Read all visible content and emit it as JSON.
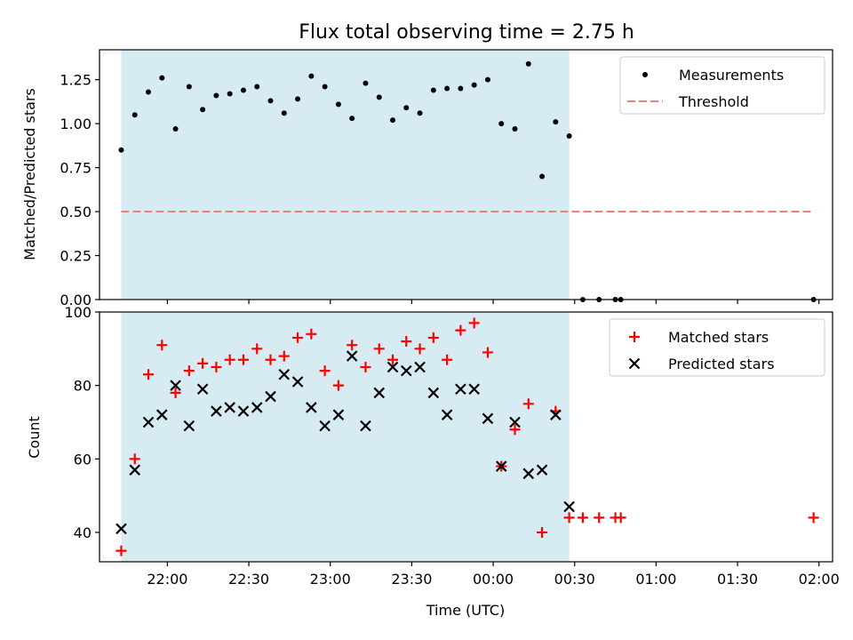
{
  "chart_data": [
    {
      "type": "scatter",
      "title": "Flux total observing time = 2.75 h",
      "xlabel": "",
      "ylabel": "Matched/Predicted stars",
      "ylim": [
        0,
        1.42
      ],
      "yticks": [
        0,
        0.25,
        0.5,
        0.75,
        1.0,
        1.25
      ],
      "ytick_labels": [
        "0.00",
        "0.25",
        "0.50",
        "0.75",
        "1.00",
        "1.25"
      ],
      "xlim": [
        "21:35",
        "02:05"
      ],
      "xticks": [
        "22:00",
        "22:30",
        "23:00",
        "23:30",
        "00:00",
        "00:30",
        "01:00",
        "01:30",
        "02:00"
      ],
      "shaded_interval": [
        "21:43",
        "00:28"
      ],
      "shade_color": "#add8e6",
      "legend_position": "top-right",
      "series": [
        {
          "name": "Measurements",
          "marker": "dot",
          "color": "#000000",
          "x": [
            "21:43",
            "21:48",
            "21:53",
            "21:58",
            "22:03",
            "22:08",
            "22:13",
            "22:18",
            "22:23",
            "22:28",
            "22:33",
            "22:38",
            "22:43",
            "22:48",
            "22:53",
            "22:58",
            "23:03",
            "23:08",
            "23:13",
            "23:18",
            "23:23",
            "23:28",
            "23:33",
            "23:38",
            "23:43",
            "23:48",
            "23:53",
            "23:58",
            "00:03",
            "00:08",
            "00:13",
            "00:18",
            "00:23",
            "00:28",
            "00:33",
            "00:39",
            "00:45",
            "00:47",
            "01:58"
          ],
          "y": [
            0.85,
            1.05,
            1.18,
            1.26,
            0.97,
            1.21,
            1.08,
            1.16,
            1.17,
            1.19,
            1.21,
            1.13,
            1.06,
            1.14,
            1.27,
            1.21,
            1.11,
            1.03,
            1.23,
            1.15,
            1.02,
            1.09,
            1.06,
            1.19,
            1.2,
            1.2,
            1.22,
            1.25,
            1.0,
            0.97,
            1.34,
            0.7,
            1.01,
            0.93,
            0.0,
            0.0,
            0.0,
            0.0,
            0.0
          ]
        },
        {
          "name": "Threshold",
          "marker": "dashed-line",
          "color": "#f08080",
          "x": [
            "21:43",
            "01:58"
          ],
          "y": [
            0.5,
            0.5
          ]
        }
      ]
    },
    {
      "type": "scatter",
      "title": "",
      "xlabel": "Time (UTC)",
      "ylabel": "Count",
      "ylim": [
        32,
        100
      ],
      "yticks": [
        40,
        60,
        80,
        100
      ],
      "ytick_labels": [
        "40",
        "60",
        "80",
        "100"
      ],
      "xlim": [
        "21:35",
        "02:05"
      ],
      "xticks": [
        "22:00",
        "22:30",
        "23:00",
        "23:30",
        "00:00",
        "00:30",
        "01:00",
        "01:30",
        "02:00"
      ],
      "shaded_interval": [
        "21:43",
        "00:28"
      ],
      "shade_color": "#add8e6",
      "legend_position": "top-right",
      "series": [
        {
          "name": "Matched stars",
          "marker": "plus",
          "color": "#ff0000",
          "x": [
            "21:43",
            "21:48",
            "21:53",
            "21:58",
            "22:03",
            "22:08",
            "22:13",
            "22:18",
            "22:23",
            "22:28",
            "22:33",
            "22:38",
            "22:43",
            "22:48",
            "22:53",
            "22:58",
            "23:03",
            "23:08",
            "23:13",
            "23:18",
            "23:23",
            "23:28",
            "23:33",
            "23:38",
            "23:43",
            "23:48",
            "23:53",
            "23:58",
            "00:03",
            "00:08",
            "00:13",
            "00:18",
            "00:23",
            "00:28",
            "00:33",
            "00:39",
            "00:45",
            "00:47",
            "01:58"
          ],
          "y": [
            35,
            60,
            83,
            91,
            78,
            84,
            86,
            85,
            87,
            87,
            90,
            87,
            88,
            93,
            94,
            84,
            80,
            91,
            85,
            90,
            87,
            92,
            90,
            93,
            87,
            95,
            97,
            89,
            58,
            68,
            75,
            40,
            73,
            44,
            44,
            44,
            44,
            44,
            44
          ]
        },
        {
          "name": "Predicted stars",
          "marker": "x",
          "color": "#000000",
          "x": [
            "21:43",
            "21:48",
            "21:53",
            "21:58",
            "22:03",
            "22:08",
            "22:13",
            "22:18",
            "22:23",
            "22:28",
            "22:33",
            "22:38",
            "22:43",
            "22:48",
            "22:53",
            "22:58",
            "23:03",
            "23:08",
            "23:13",
            "23:18",
            "23:23",
            "23:28",
            "23:33",
            "23:38",
            "23:43",
            "23:48",
            "23:53",
            "23:58",
            "00:03",
            "00:08",
            "00:13",
            "00:18",
            "00:23",
            "00:28"
          ],
          "y": [
            41,
            57,
            70,
            72,
            80,
            69,
            79,
            73,
            74,
            73,
            74,
            77,
            83,
            81,
            74,
            69,
            72,
            88,
            69,
            78,
            85,
            84,
            85,
            78,
            72,
            79,
            79,
            71,
            58,
            70,
            56,
            57,
            72,
            47
          ]
        }
      ]
    }
  ]
}
